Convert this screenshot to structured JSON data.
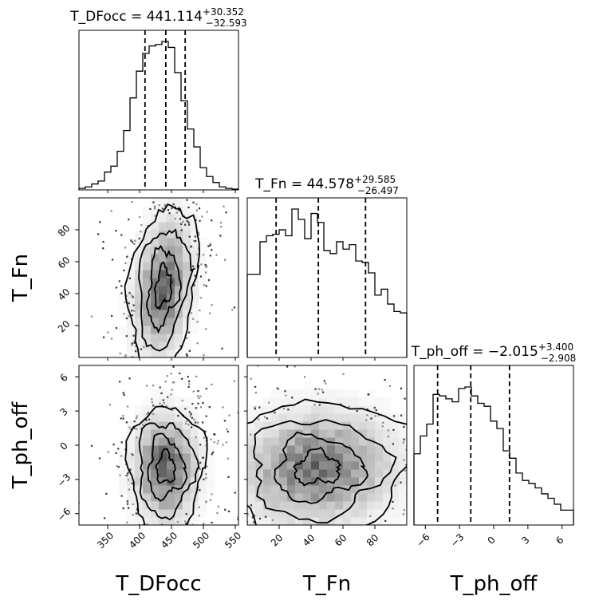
{
  "chart_data": {
    "type": "corner",
    "parameters": [
      {
        "name": "T_DFocc",
        "axis_label": "T_DFocc",
        "range": [
          305,
          555
        ],
        "ticks": [
          350,
          400,
          450,
          500,
          550
        ],
        "tick_labels": [
          "350",
          "400",
          "450",
          "500",
          "550"
        ],
        "median": 441.114,
        "q_low": 408.521,
        "q_high": 471.466,
        "title_main": "T_DFocc = 441.114",
        "title_sup": "+30.352",
        "title_sub": "−32.593",
        "histogram": [
          0.01,
          0.02,
          0.04,
          0.06,
          0.12,
          0.16,
          0.26,
          0.4,
          0.62,
          0.8,
          0.92,
          0.97,
          0.98,
          1.0,
          0.96,
          0.79,
          0.6,
          0.41,
          0.29,
          0.15,
          0.09,
          0.05,
          0.02,
          0.01,
          0.005
        ]
      },
      {
        "name": "T_Fn",
        "axis_label": "T_Fn",
        "range": [
          0,
          100
        ],
        "ticks": [
          20,
          40,
          60,
          80
        ],
        "tick_labels": [
          "20",
          "40",
          "60",
          "80"
        ],
        "median": 44.578,
        "q_low": 18.081,
        "q_high": 74.163,
        "title_main": "T_Fn = 44.578",
        "title_sup": "+29.585",
        "title_sub": "−26.497",
        "histogram": [
          0.56,
          0.56,
          0.78,
          0.82,
          0.83,
          0.86,
          0.82,
          1.0,
          0.93,
          0.8,
          0.97,
          0.91,
          0.72,
          0.7,
          0.78,
          0.73,
          0.76,
          0.65,
          0.64,
          0.57,
          0.42,
          0.46,
          0.36,
          0.31,
          0.3
        ]
      },
      {
        "name": "T_ph_off",
        "axis_label": "T_ph_off",
        "range": [
          -7,
          7
        ],
        "ticks": [
          -6,
          -3,
          0,
          3,
          6
        ],
        "tick_labels": [
          "−6",
          "−3",
          "0",
          "3",
          "6"
        ],
        "median": -2.015,
        "q_low": -4.923,
        "q_high": 1.385,
        "title_main": "T_ph_off = −2.015",
        "title_sup": "+3.400",
        "title_sub": "−2.908",
        "histogram": [
          0.48,
          0.6,
          0.68,
          0.88,
          0.87,
          0.85,
          0.83,
          0.92,
          0.93,
          0.87,
          0.82,
          0.8,
          0.7,
          0.65,
          0.5,
          0.45,
          0.35,
          0.3,
          0.28,
          0.25,
          0.21,
          0.18,
          0.14,
          0.1,
          0.1
        ]
      }
    ],
    "pairs": [
      {
        "x": "T_DFocc",
        "y": "T_Fn",
        "center": [
          437,
          44
        ],
        "spread": [
          25,
          24
        ],
        "corr": 0.25
      },
      {
        "x": "T_DFocc",
        "y": "T_ph_off",
        "center": [
          441,
          -2
        ],
        "spread": [
          28,
          2.6
        ],
        "corr": 0.0
      },
      {
        "x": "T_Fn",
        "y": "T_ph_off",
        "center": [
          44,
          -2
        ],
        "spread": [
          27,
          2.8
        ],
        "corr": 0.05
      }
    ]
  }
}
